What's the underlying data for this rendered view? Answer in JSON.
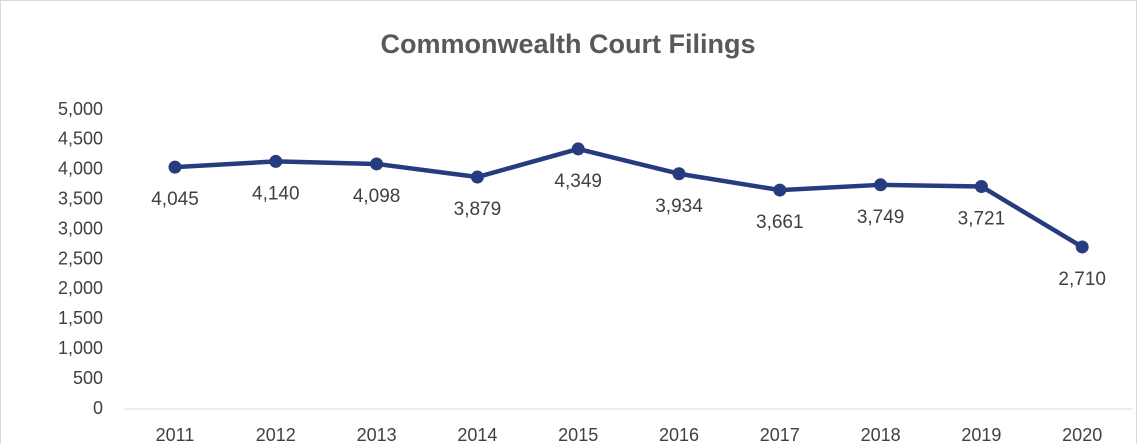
{
  "chart_data": {
    "type": "line",
    "title": "Commonwealth Court Filings",
    "categories": [
      "2011",
      "2012",
      "2013",
      "2014",
      "2015",
      "2016",
      "2017",
      "2018",
      "2019",
      "2020"
    ],
    "series": [
      {
        "color": "#263c7e",
        "values": [
          4045,
          4140,
          4098,
          3879,
          4349,
          3934,
          3661,
          3749,
          3721,
          2710
        ],
        "value_labels": [
          "4,045",
          "4,140",
          "4,098",
          "3,879",
          "4,349",
          "3,934",
          "3,661",
          "3,749",
          "3,721",
          "2,710"
        ]
      }
    ],
    "ylim": [
      0,
      5000
    ],
    "yticks": [
      0,
      500,
      {
        "value": 1000,
        "label": "1,000"
      },
      {
        "value": 1500,
        "label": "1,500"
      },
      {
        "value": 2000,
        "label": "2,000"
      },
      {
        "value": 2500,
        "label": "2,500"
      },
      {
        "value": 3000,
        "label": "3,000"
      },
      {
        "value": 3500,
        "label": "3,500"
      },
      {
        "value": 4000,
        "label": "4,000"
      },
      {
        "value": 4500,
        "label": "4,500"
      },
      {
        "value": 5000,
        "label": "5,000"
      }
    ],
    "grid": false
  }
}
